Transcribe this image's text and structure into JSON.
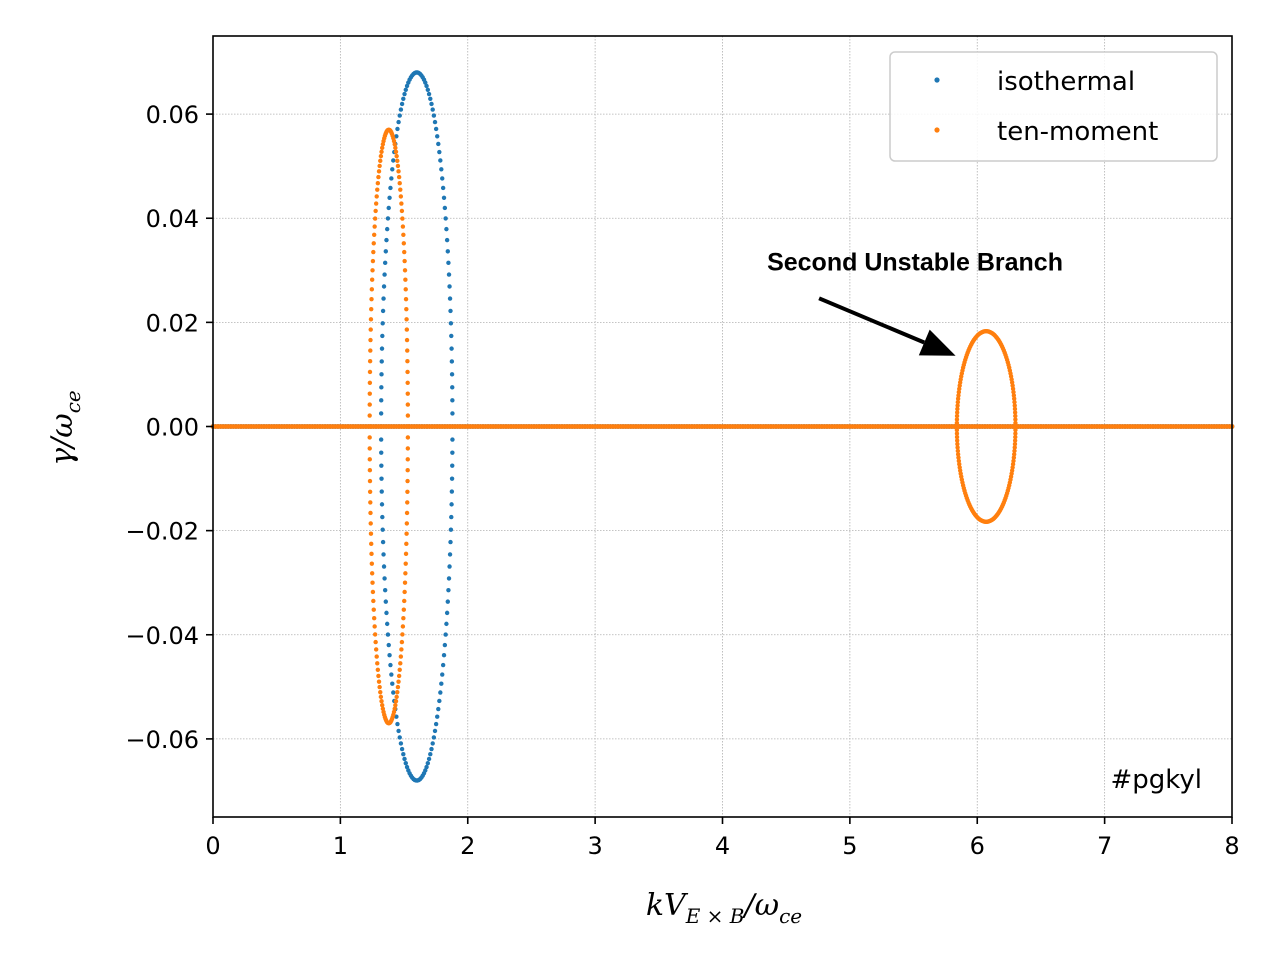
{
  "chart_data": {
    "type": "scatter",
    "title": "",
    "xlabel_parts": {
      "base": "kV",
      "sub": "E × B",
      "slash": "/ω",
      "sub2": "ce"
    },
    "ylabel_parts": {
      "base": "γ/ω",
      "sub": "ce"
    },
    "xlim": [
      0,
      8
    ],
    "ylim": [
      -0.075,
      0.075
    ],
    "xticks": [
      0,
      1,
      2,
      3,
      4,
      5,
      6,
      7,
      8
    ],
    "xtick_labels": [
      "0",
      "1",
      "2",
      "3",
      "4",
      "5",
      "6",
      "7",
      "8"
    ],
    "yticks": [
      -0.06,
      -0.04,
      -0.02,
      0.0,
      0.02,
      0.04,
      0.06
    ],
    "ytick_labels": [
      "−0.06",
      "−0.04",
      "−0.02",
      "0.00",
      "0.02",
      "0.04",
      "0.06"
    ],
    "grid": true,
    "legend_position": "top-right",
    "series": [
      {
        "name": "isothermal",
        "color": "#1f77b4",
        "ellipses": [
          {
            "cx": 1.6,
            "cy": 0,
            "rx": 0.28,
            "ry": 0.068
          }
        ],
        "stable_line": [
          0,
          8
        ]
      },
      {
        "name": "ten-moment",
        "color": "#ff7f0e",
        "ellipses": [
          {
            "cx": 1.38,
            "cy": 0,
            "rx": 0.15,
            "ry": 0.057
          },
          {
            "cx": 6.07,
            "cy": 0,
            "rx": 0.23,
            "ry": 0.0183
          }
        ],
        "stable_line": [
          0,
          8
        ]
      }
    ],
    "annotations": [
      {
        "text": "Second Unstable Branch",
        "text_at": [
          4.35,
          0.03
        ],
        "arrow_to": [
          5.83,
          0.0136
        ]
      }
    ],
    "watermark": "#pgkyl"
  }
}
